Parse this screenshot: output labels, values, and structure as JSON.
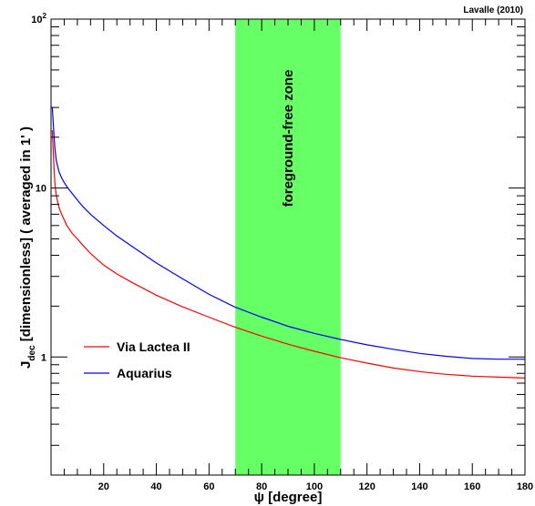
{
  "chart_data": {
    "type": "line",
    "credit": "Lavalle (2010)",
    "xlabel": "ψ [degree]",
    "ylabel": "J",
    "ylabel_sub": "dec",
    "ylabel_rest": " [dimensionless] ( averaged in 1' )",
    "xlim": [
      0,
      180
    ],
    "ylim": [
      0.2,
      100
    ],
    "yscale": "log",
    "x_ticks": [
      20,
      40,
      60,
      80,
      100,
      120,
      140,
      160,
      180
    ],
    "y_ticks": [
      {
        "value": 1,
        "base": "1",
        "exp": ""
      },
      {
        "value": 10,
        "base": "10",
        "exp": ""
      },
      {
        "value": 100,
        "base": "10",
        "exp": "2"
      }
    ],
    "band": {
      "x0": 70,
      "x1": 110,
      "label": "foreground-free zone",
      "color": "#66ff66"
    },
    "legend": {
      "position": "center-left"
    },
    "series": [
      {
        "name": "Via Lactea II",
        "color": "#ff0000",
        "x": [
          0.5,
          1,
          1.5,
          2,
          3,
          4,
          5,
          6,
          8,
          10,
          12,
          15,
          20,
          25,
          30,
          40,
          50,
          60,
          70,
          80,
          90,
          100,
          110,
          120,
          130,
          140,
          150,
          160,
          170,
          180
        ],
        "y": [
          22,
          14.5,
          10.5,
          9.0,
          7.7,
          7.0,
          6.5,
          6.0,
          5.4,
          5.0,
          4.6,
          4.1,
          3.5,
          3.1,
          2.8,
          2.32,
          1.98,
          1.72,
          1.5,
          1.33,
          1.19,
          1.08,
          0.99,
          0.92,
          0.86,
          0.82,
          0.79,
          0.77,
          0.76,
          0.75
        ]
      },
      {
        "name": "Aquarius",
        "color": "#0000ff",
        "x": [
          0.5,
          1,
          1.5,
          2,
          3,
          4,
          5,
          6,
          8,
          10,
          12,
          15,
          20,
          25,
          30,
          40,
          50,
          60,
          70,
          80,
          90,
          100,
          110,
          120,
          130,
          140,
          150,
          160,
          170,
          180
        ],
        "y": [
          30,
          22,
          17,
          14.5,
          12.5,
          11.5,
          10.8,
          10.2,
          9.3,
          8.5,
          7.8,
          7.0,
          6.0,
          5.2,
          4.6,
          3.6,
          2.9,
          2.35,
          1.97,
          1.72,
          1.52,
          1.38,
          1.27,
          1.18,
          1.11,
          1.05,
          1.01,
          0.98,
          0.97,
          0.97
        ]
      }
    ]
  }
}
